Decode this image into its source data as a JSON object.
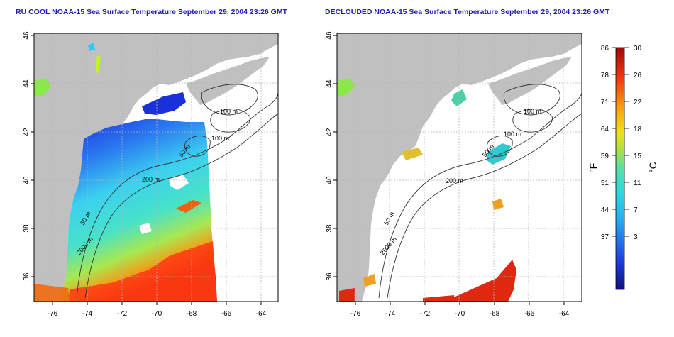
{
  "titles": {
    "left": "RU COOL NOAA-15 Sea Surface Temperature September 29, 2004 23:26 GMT",
    "right": "DECLOUDED NOAA-15 Sea Surface Temperature September 29, 2004 23:26 GMT"
  },
  "axes": {
    "lon_ticks": [
      "-76",
      "-74",
      "-72",
      "-70",
      "-68",
      "-66",
      "-64"
    ],
    "lat_ticks": [
      "36",
      "38",
      "40",
      "42",
      "44",
      "46"
    ]
  },
  "contours": {
    "left": [
      "100 m",
      "100 m",
      "50 m",
      "200 m",
      "50 m",
      "2000 m"
    ],
    "right": [
      "100 m",
      "100 m",
      "50 m",
      "200 m",
      "50 m",
      "2000 m"
    ]
  },
  "colorbar": {
    "f_ticks": [
      "86",
      "78",
      "71",
      "64",
      "59",
      "51",
      "44",
      "37"
    ],
    "c_ticks": [
      "30",
      "26",
      "22",
      "18",
      "15",
      "11",
      "7",
      "3"
    ],
    "f_unit": "°F",
    "c_unit": "°C"
  },
  "colors": {
    "land": "#c0c0c0",
    "ocean": "#ffffff",
    "title": "#1f1fb4",
    "grid": "#b4b4b4"
  }
}
